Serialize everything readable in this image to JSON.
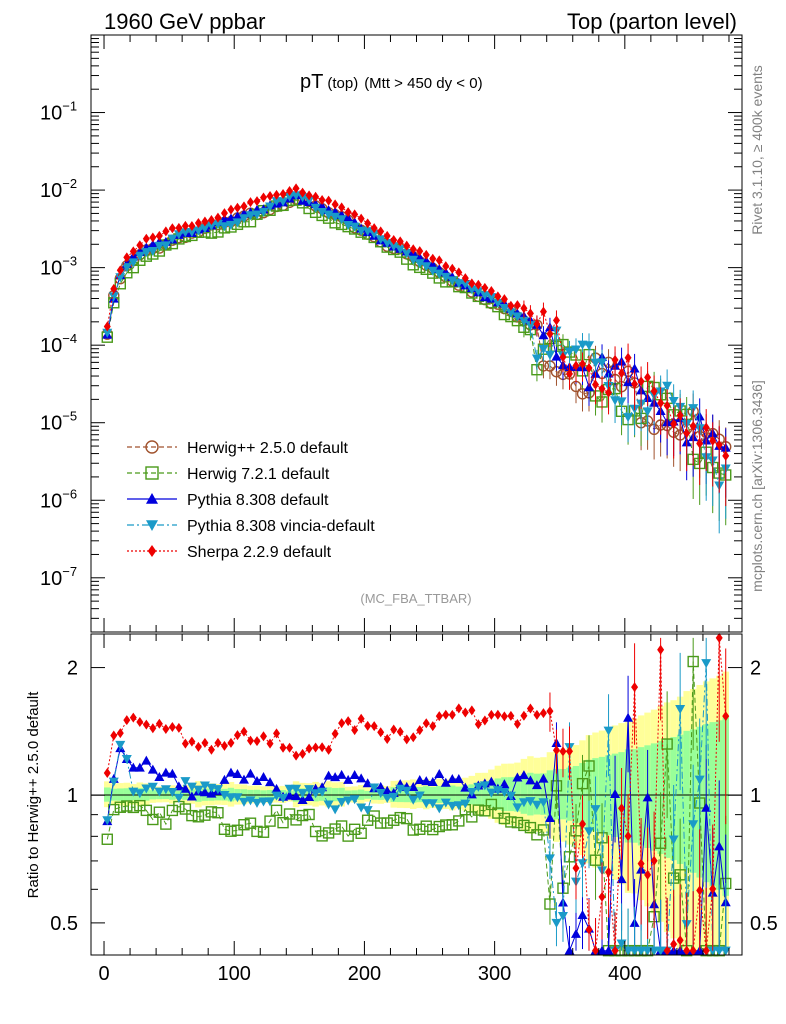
{
  "header": {
    "left": "1960 GeV ppbar",
    "right": "Top (parton level)"
  },
  "side": {
    "rivet": "Rivet 3.1.10, ≥ 400k events",
    "mcplots": "mcplots.cern.ch [arXiv:1306.3436]"
  },
  "analysis_tag": "(MC_FBA_TTBAR)",
  "colors": {
    "herwigpp": "#a0522d",
    "herwig7": "#4a9a1a",
    "pythia": "#0000dd",
    "vincia": "#1a9ac8",
    "sherpa": "#ee0000",
    "band_yellow": "#ffff99",
    "band_green": "#99ff99"
  },
  "chart_data": [
    {
      "type": "line",
      "title": "pT",
      "title_sub": "(top)",
      "title_cut": "(Mtt > 450 dy < 0)",
      "yscale": "log",
      "xlim": [
        -10,
        490
      ],
      "ylim": [
        2e-08,
        1
      ],
      "ytick_labels": [
        {
          "base": "10",
          "exp": "−1",
          "value": 0.1
        },
        {
          "base": "10",
          "exp": "−2",
          "value": 0.01
        },
        {
          "base": "10",
          "exp": "−3",
          "value": 0.001
        },
        {
          "base": "10",
          "exp": "−4",
          "value": 0.0001
        },
        {
          "base": "10",
          "exp": "−5",
          "value": 1e-05
        },
        {
          "base": "10",
          "exp": "−6",
          "value": 1e-06
        },
        {
          "base": "10",
          "exp": "−7",
          "value": 1e-07
        }
      ],
      "legend_position": "bottom-left",
      "model": {
        "bin_width": 5,
        "x_first": 2.5,
        "x_last": 477.5,
        "peak_x": 147.5,
        "points": [
          [
            2.5,
            0.000145
          ],
          [
            7.5,
            0.00042
          ],
          [
            12.5,
            0.00075
          ],
          [
            17.5,
            0.00105
          ],
          [
            30,
            0.0016
          ],
          [
            60,
            0.0027
          ],
          [
            100,
            0.0041
          ],
          [
            147.5,
            0.0085
          ],
          [
            200,
            0.0031
          ],
          [
            250,
            0.00105
          ],
          [
            300,
            0.00037
          ],
          [
            350,
            0.00011
          ],
          [
            400,
            4e-05
          ],
          [
            440,
            1.8e-05
          ],
          [
            477.5,
            4e-06
          ]
        ]
      },
      "series": [
        {
          "name": "Herwig++ 2.5.0 default",
          "key": "herwigpp",
          "marker": "open-circle",
          "line": "dashed",
          "factor": 1.0
        },
        {
          "name": "Herwig 7.2.1 default",
          "key": "herwig7",
          "marker": "open-square",
          "line": "dashed",
          "factor": 0.9
        },
        {
          "name": "Pythia 8.308 default",
          "key": "pythia",
          "marker": "triangle-up",
          "line": "solid",
          "factor": 1.08
        },
        {
          "name": "Pythia 8.308 vincia-default",
          "key": "vincia",
          "marker": "triangle-down",
          "line": "dashdot",
          "factor": 1.02
        },
        {
          "name": "Sherpa 2.2.9 default",
          "key": "sherpa",
          "marker": "diamond",
          "line": "dotted",
          "factor": 1.35
        }
      ]
    },
    {
      "type": "line",
      "ylabel": "Ratio to Herwig++ 2.5.0 default",
      "xlabel": "",
      "yscale": "log",
      "xlim": [
        -10,
        490
      ],
      "ylim": [
        0.42,
        2.4
      ],
      "reference": 1,
      "xtick_labels": [
        "0",
        "100",
        "200",
        "300",
        "400"
      ],
      "ytick_labels": [
        "2",
        "1",
        "0.5"
      ],
      "series": [
        {
          "name": "Herwig 7.2.1 default",
          "key": "herwig7",
          "anchors": [
            [
              2.5,
              0.8
            ],
            [
              7.5,
              0.93
            ],
            [
              12.5,
              0.95
            ],
            [
              20,
              1.0
            ],
            [
              60,
              0.92
            ],
            [
              100,
              0.91
            ],
            [
              150,
              0.88
            ],
            [
              200,
              0.88
            ],
            [
              250,
              0.9
            ],
            [
              300,
              0.92
            ],
            [
              350,
              0.85
            ],
            [
              400,
              0.72
            ],
            [
              440,
              0.65
            ],
            [
              477.5,
              2.15
            ]
          ]
        },
        {
          "name": "Pythia 8.308 default",
          "key": "pythia",
          "anchors": [
            [
              2.5,
              0.95
            ],
            [
              12.5,
              1.38
            ],
            [
              20,
              1.2
            ],
            [
              60,
              1.1
            ],
            [
              100,
              1.1
            ],
            [
              150,
              1.06
            ],
            [
              200,
              1.12
            ],
            [
              250,
              1.1
            ],
            [
              300,
              1.12
            ],
            [
              350,
              1.05
            ],
            [
              400,
              0.95
            ],
            [
              440,
              1.0
            ],
            [
              477.5,
              1.5
            ]
          ]
        },
        {
          "name": "Pythia 8.308 vincia-default",
          "key": "vincia",
          "anchors": [
            [
              2.5,
              0.9
            ],
            [
              12.5,
              1.35
            ],
            [
              20,
              1.12
            ],
            [
              60,
              1.05
            ],
            [
              100,
              1.03
            ],
            [
              150,
              1.0
            ],
            [
              200,
              1.02
            ],
            [
              250,
              1.0
            ],
            [
              300,
              1.05
            ],
            [
              350,
              0.98
            ],
            [
              400,
              0.85
            ],
            [
              440,
              0.8
            ],
            [
              477.5,
              1.7
            ]
          ]
        },
        {
          "name": "Sherpa 2.2.9 default",
          "key": "sherpa",
          "anchors": [
            [
              2.5,
              1.17
            ],
            [
              7.5,
              1.45
            ],
            [
              12.5,
              1.55
            ],
            [
              15,
              1.7
            ],
            [
              30,
              1.5
            ],
            [
              60,
              1.4
            ],
            [
              100,
              1.38
            ],
            [
              150,
              1.35
            ],
            [
              200,
              1.48
            ],
            [
              250,
              1.48
            ],
            [
              300,
              1.65
            ],
            [
              350,
              1.5
            ],
            [
              400,
              1.4
            ],
            [
              440,
              1.2
            ],
            [
              477.5,
              2.2
            ]
          ]
        }
      ]
    }
  ]
}
